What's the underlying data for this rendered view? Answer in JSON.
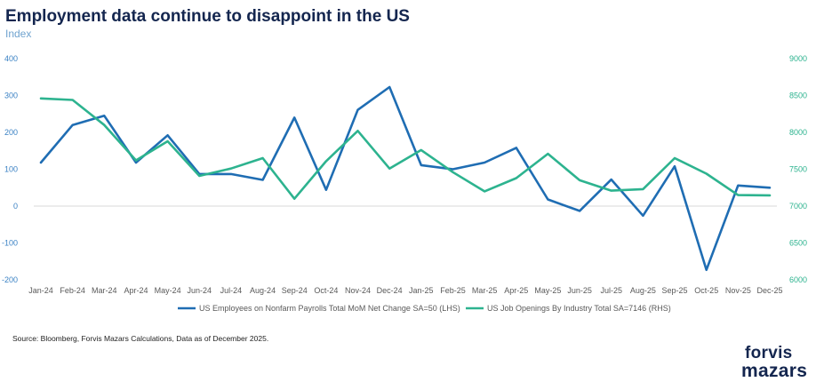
{
  "header": {
    "title": "Employment data continue to disappoint in the US",
    "subtitle": "Index"
  },
  "footer": {
    "source": "Source: Bloomberg, Forvis Mazars Calculations, Data  as of December 2025.",
    "logo_line1": "forvis",
    "logo_line2": "mazars"
  },
  "colors": {
    "lhs_series": "#1f6db3",
    "rhs_series": "#2db38f",
    "lhs_axis_text": "#3b82c4",
    "rhs_axis_text": "#2db38f",
    "zero_line": "#d9d9d9"
  },
  "chart_data": {
    "type": "line",
    "categories": [
      "Jan-24",
      "Feb-24",
      "Mar-24",
      "Apr-24",
      "May-24",
      "Jun-24",
      "Jul-24",
      "Aug-24",
      "Sep-24",
      "Oct-24",
      "Nov-24",
      "Dec-24",
      "Jan-25",
      "Feb-25",
      "Mar-25",
      "Apr-25",
      "May-25",
      "Jun-25",
      "Jul-25",
      "Aug-25",
      "Sep-25",
      "Oct-25",
      "Nov-25",
      "Dec-25"
    ],
    "title": "Employment data continue to disappoint in the US",
    "subtitle": "Index",
    "ylim_left": [
      -200,
      400
    ],
    "yticks_left": [
      "400",
      "300",
      "200",
      "100",
      "0",
      "-100",
      "-200"
    ],
    "ylim_right": [
      6000,
      9000
    ],
    "yticks_right": [
      "9000",
      "8500",
      "8000",
      "7500",
      "7000",
      "6500",
      "6000"
    ],
    "grid": false,
    "legend_position": "bottom",
    "series": [
      {
        "name": "US Employees on Nonfarm Payrolls Total MoM Net Change SA=50 (LHS)",
        "axis": "left",
        "values": [
          118,
          220,
          245,
          118,
          192,
          87,
          87,
          71,
          240,
          44,
          261,
          323,
          111,
          100,
          118,
          158,
          18,
          -13,
          72,
          -26,
          108,
          -173,
          56,
          50
        ]
      },
      {
        "name": "US Job Openings By Industry Total SA=7146 (RHS)",
        "axis": "right",
        "values": [
          8460,
          8440,
          8100,
          7620,
          7880,
          7410,
          7510,
          7650,
          7100,
          7610,
          8020,
          7510,
          7760,
          7460,
          7200,
          7380,
          7710,
          7350,
          7210,
          7230,
          7650,
          7440,
          7150,
          7146
        ]
      }
    ]
  }
}
